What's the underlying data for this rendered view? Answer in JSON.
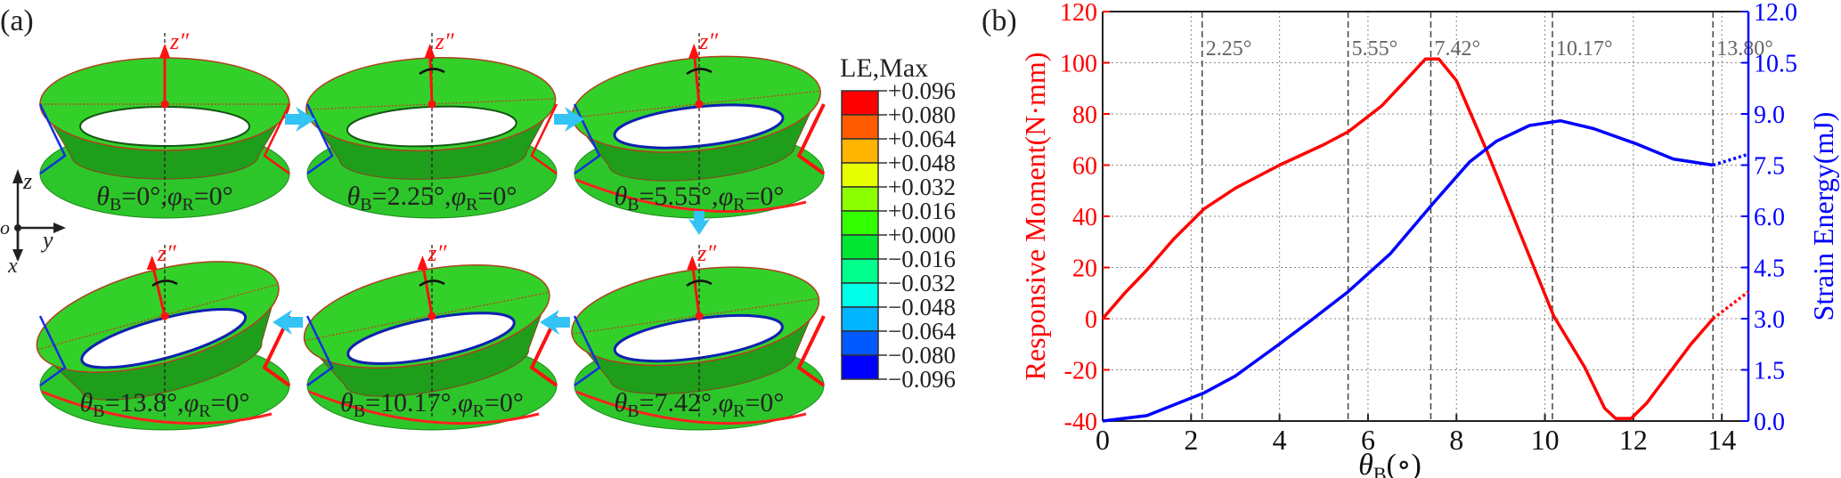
{
  "panel_a": {
    "label": "(a)",
    "axis_triad": {
      "z": "z",
      "y": "y",
      "x": "x",
      "origin": "o"
    },
    "local_axis_label": "z″",
    "arrow_color": "#33c3f5",
    "rings": [
      {
        "label": [
          "θ",
          "B",
          "=0°,",
          "φ",
          "R",
          "=0°"
        ],
        "tilt": 0,
        "row": 0,
        "col": 0
      },
      {
        "label": [
          "θ",
          "B",
          "=2.25°,",
          "φ",
          "R",
          "=0°"
        ],
        "tilt": 2.25,
        "row": 0,
        "col": 1
      },
      {
        "label": [
          "θ",
          "B",
          "=5.55°,",
          "φ",
          "R",
          "=0°"
        ],
        "tilt": 5.55,
        "row": 0,
        "col": 2
      },
      {
        "label": [
          "θ",
          "B",
          "=7.42°,",
          "φ",
          "R",
          "=0°"
        ],
        "tilt": 7.42,
        "row": 1,
        "col": 2
      },
      {
        "label": [
          "θ",
          "B",
          "=10.17°,",
          "φ",
          "R",
          "=0°"
        ],
        "tilt": 10.17,
        "row": 1,
        "col": 1
      },
      {
        "label": [
          "θ",
          "B",
          "=13.8°,",
          "φ",
          "R",
          "=0°"
        ],
        "tilt": 13.8,
        "row": 1,
        "col": 0
      }
    ],
    "colorbar": {
      "title": "LE,Max",
      "labels": [
        "+0.096",
        "+0.080",
        "+0.064",
        "+0.048",
        "+0.032",
        "+0.016",
        "+0.000",
        "−0.016",
        "−0.032",
        "−0.048",
        "−0.064",
        "−0.080",
        "−0.096"
      ],
      "colors": [
        "#ff0000",
        "#ff5a00",
        "#ffb400",
        "#e6ff00",
        "#8cff00",
        "#32ff00",
        "#00e632",
        "#00ff8c",
        "#00ffe6",
        "#00b4ff",
        "#005aff",
        "#0000ff"
      ]
    }
  },
  "chart_data": {
    "panel_label": "(b)",
    "type": "line",
    "xlabel": [
      "θ",
      "B",
      "(∘)"
    ],
    "ylabel_left": "Responsive Moment(N·mm)",
    "ylabel_right": "Strain Energy(mJ)",
    "xlim": [
      0,
      14.6
    ],
    "xticks": [
      0,
      2,
      4,
      6,
      8,
      10,
      12,
      14
    ],
    "ylim_left": [
      -40,
      120
    ],
    "yticks_left": [
      -40,
      -20,
      0,
      20,
      40,
      60,
      80,
      100,
      120
    ],
    "ylim_right": [
      0,
      12
    ],
    "yticks_right": [
      "0.0",
      "1.5",
      "3.0",
      "4.5",
      "6.0",
      "7.5",
      "9.0",
      "10.5",
      "12.0"
    ],
    "grid": true,
    "markers": [
      {
        "x": 2.25,
        "label": "2.25°"
      },
      {
        "x": 5.55,
        "label": "5.55°"
      },
      {
        "x": 7.42,
        "label": "7.42°"
      },
      {
        "x": 10.17,
        "label": "10.17°"
      },
      {
        "x": 13.8,
        "label": "13.80°"
      }
    ],
    "series": [
      {
        "axis": "left",
        "color": "#ff0000",
        "x": [
          0,
          0.5,
          1.0,
          1.6,
          2.3,
          3.0,
          4.0,
          5.0,
          5.55,
          6.3,
          6.9,
          7.3,
          7.6,
          8.0,
          8.7,
          9.4,
          10.2,
          10.9,
          11.35,
          11.6,
          11.95,
          12.3,
          13.3,
          13.8
        ],
        "y": [
          0,
          10,
          19,
          31,
          43,
          51,
          60,
          68,
          73,
          83,
          94,
          101.5,
          101.5,
          93,
          65,
          35,
          1,
          -19,
          -35,
          -39,
          -39,
          -33,
          -10,
          0
        ],
        "dotted_extension": {
          "x": [
            13.8,
            14.6
          ],
          "y": [
            0,
            10.5
          ]
        }
      },
      {
        "axis": "right",
        "color": "#0000ff",
        "x": [
          0,
          1.0,
          2.3,
          3.0,
          4.0,
          4.7,
          5.55,
          6.5,
          7.5,
          8.3,
          8.9,
          9.65,
          10.35,
          11.1,
          12.05,
          12.9,
          13.8
        ],
        "y": [
          0,
          0.16,
          0.83,
          1.32,
          2.26,
          2.94,
          3.79,
          4.9,
          6.42,
          7.6,
          8.2,
          8.66,
          8.8,
          8.57,
          8.13,
          7.68,
          7.5
        ],
        "dotted_extension": {
          "x": [
            13.8,
            14.55
          ],
          "y": [
            7.5,
            7.8
          ]
        }
      }
    ]
  }
}
